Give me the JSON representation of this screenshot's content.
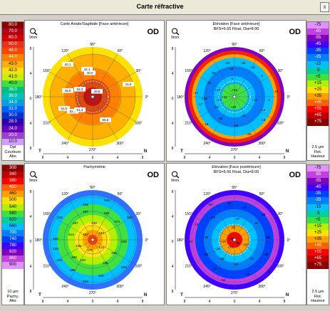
{
  "window": {
    "title": "Carte réfractive",
    "close_label": "x"
  },
  "legend_left_top": {
    "values": [
      "80.0",
      "70.0",
      "60.0",
      "50.0",
      "46.0",
      "44.0",
      "43.0",
      "42.0",
      "41.0",
      "40.0",
      "38.0",
      "36.0",
      "34.0",
      "32.0",
      "30.0",
      "28.0",
      "24.0",
      "20.0",
      "10.0"
    ],
    "colors": [
      "#8b0000",
      "#b3001a",
      "#d40000",
      "#e8301a",
      "#ff4500",
      "#ff8000",
      "#ffb000",
      "#ffe000",
      "#c8f000",
      "#40e040",
      "#00c080",
      "#00c0c0",
      "#00a0e0",
      "#0060ff",
      "#0030d0",
      "#3000b0",
      "#6a00c0",
      "#9a3fd0",
      "#d0a0ff"
    ],
    "foot": [
      "Dpt",
      "Courbure",
      "Abs"
    ]
  },
  "legend_left_bottom": {
    "values": [
      "300",
      "340",
      "380",
      "420",
      "460",
      "500",
      "540",
      "580",
      "620",
      "660",
      "700",
      "740",
      "780",
      "820",
      "860",
      "900"
    ],
    "colors": [
      "#8b0000",
      "#c00000",
      "#ff0000",
      "#ff6000",
      "#ffa000",
      "#ffe000",
      "#b0f000",
      "#40e040",
      "#00d0a0",
      "#00c0ff",
      "#0080ff",
      "#0040ff",
      "#4000ff",
      "#8000c0",
      "#c040e0",
      "#e090ff"
    ],
    "foot": [
      "10 µm",
      "Pachy.",
      "Abs"
    ]
  },
  "legend_right_top": {
    "values": [
      "-75",
      "-65",
      "-55",
      "-45",
      "-35",
      "-25",
      "-15",
      "-5",
      "+5",
      "+15",
      "+25",
      "+35",
      "+45",
      "+55",
      "+65",
      "+75"
    ],
    "colors": [
      "#e090ff",
      "#c040e0",
      "#8000c0",
      "#4000ff",
      "#0040ff",
      "#0080ff",
      "#00c0ff",
      "#00d0a0",
      "#40e040",
      "#b0f000",
      "#ffe000",
      "#ffa000",
      "#ff6000",
      "#ff0000",
      "#c00000",
      "#8b0000"
    ],
    "foot": [
      "2.5 µm",
      "Flot.",
      "Hauteur"
    ]
  },
  "legend_right_bottom": {
    "values": [
      "-75",
      "-65",
      "-55",
      "-45",
      "-35",
      "-25",
      "-15",
      "-5",
      "+5",
      "+15",
      "+25",
      "+35",
      "+45",
      "+55",
      "+65",
      "+75"
    ],
    "colors": [
      "#e090ff",
      "#c040e0",
      "#8000c0",
      "#4000ff",
      "#0040ff",
      "#0080ff",
      "#00c0ff",
      "#00d0a0",
      "#40e040",
      "#b0f000",
      "#ffe000",
      "#ffa000",
      "#ff6000",
      "#ff0000",
      "#c00000",
      "#8b0000"
    ],
    "foot": [
      "2.5 µm",
      "Flot.",
      "Hauteur"
    ]
  },
  "panels": [
    {
      "id": "axial",
      "title": "Carte Axiale/Sagittale [Face antérieure]",
      "subtitle": "",
      "od": "OD",
      "zoom": "9mm",
      "axis_left": "T",
      "axis_right": "N",
      "angles": {
        "top": "90°",
        "bottom": "270°",
        "left": "180°",
        "right": "0°",
        "tl": "120°",
        "tr": "60°",
        "bl": "240°",
        "br": "300°",
        "tl2": "150°",
        "tr2": "30°",
        "bl2": "210°",
        "br2": "330°"
      },
      "scale_y": [
        "8",
        "4",
        "0",
        "4",
        "8"
      ],
      "scale_x": [
        "8",
        "4",
        "0",
        "4",
        "8"
      ],
      "values": [
        "42.1",
        "42.1",
        "41.5",
        "40.0",
        "52.3",
        "49.6",
        "46.8",
        "54.0",
        "52.9",
        "51.3",
        "55.5"
      ]
    },
    {
      "id": "elev-ant",
      "title": "Elévation [Face antérieure]",
      "subtitle": "BFS=6.65 Float, Dia=8.00",
      "od": "OD",
      "zoom": "9mm",
      "axis_left": "T",
      "axis_right": "N",
      "angles": {
        "top": "90°",
        "bottom": "270°",
        "left": "180°",
        "right": "0°",
        "tl": "120°",
        "tr": "60°",
        "bl": "240°",
        "br": "300°",
        "tl2": "150°",
        "tr2": "30°",
        "bl2": "210°",
        "br2": "330°"
      },
      "scale_y": [
        "8",
        "4",
        "0",
        "4",
        "8"
      ],
      "scale_x": [
        "8",
        "4",
        "0",
        "4",
        "8"
      ],
      "values": [
        "-31",
        "-33",
        "-29",
        "-31",
        "-25",
        "-24",
        "-17",
        "-10",
        "-6",
        "-4",
        "-2",
        "-17",
        "-16",
        "+14",
        "+11",
        "+17",
        "+15",
        "+24",
        "+29",
        "+16",
        "-1",
        "-16",
        "-20",
        "-22",
        "-14",
        "-10",
        "-20",
        "-33"
      ]
    },
    {
      "id": "pachy",
      "title": "Pachymétrie",
      "subtitle": "",
      "od": "OD",
      "zoom": "9mm",
      "axis_left": "T",
      "axis_right": "N",
      "angles": {
        "top": "90°",
        "bottom": "270°",
        "left": "180°",
        "right": "0°",
        "tl": "120°",
        "tr": "60°",
        "bl": "240°",
        "br": "300°",
        "tl2": "150°",
        "tr2": "30°",
        "bl2": "210°",
        "br2": "330°"
      },
      "scale_y": [
        "8",
        "4",
        "0",
        "4",
        "8"
      ],
      "scale_x": [
        "8",
        "4",
        "0",
        "4",
        "8"
      ],
      "values": [
        "549",
        "544",
        "497",
        "501",
        "518",
        "457",
        "430",
        "473",
        "551",
        "485",
        "528",
        "514",
        "404",
        "433",
        "539",
        "436",
        "375",
        "414",
        "492",
        "469",
        "541",
        "433",
        "436",
        "545",
        "565",
        "520",
        "549"
      ]
    },
    {
      "id": "elev-post",
      "title": "Elévation [Face postérieure]",
      "subtitle": "BFS=5.56 Float, Dia=8.00",
      "od": "OD",
      "zoom": "9mm",
      "axis_left": "T",
      "axis_right": "N",
      "angles": {
        "top": "90°",
        "bottom": "270°",
        "left": "180°",
        "right": "0°",
        "tl": "120°",
        "tr": "60°",
        "bl": "240°",
        "br": "300°",
        "tl2": "150°",
        "tr2": "30°",
        "bl2": "210°",
        "br2": "330°"
      },
      "scale_y": [
        "8",
        "4",
        "0",
        "4",
        "8"
      ],
      "scale_x": [
        "8",
        "4",
        "0",
        "4",
        "8"
      ],
      "values": [
        "-64",
        "-74",
        "-48",
        "-39",
        "-73",
        "-62",
        "-57",
        "-42",
        "-74",
        "-50",
        "-31",
        "-59",
        "-35",
        "-48",
        "+15",
        "+25",
        "+12",
        "+75",
        "+35",
        "+27",
        "+35",
        "-37",
        "-11",
        "-24",
        "-52",
        "-62",
        "-34"
      ]
    }
  ]
}
